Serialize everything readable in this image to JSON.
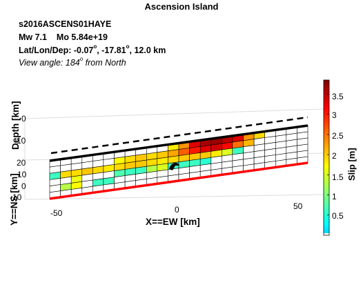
{
  "chart_data": {
    "type": "heatmap",
    "title": "Ascension Island",
    "event_id": "s2016ASCENS01HAYE",
    "mw_label": "Mw 7.1",
    "mo_label": "Mo 5.84e+19",
    "location_prefix": "Lat/Lon/Dep: -0.07",
    "location_mid": ", -17.81",
    "location_suffix": ", 12.0 km",
    "view_prefix": "View angle: 184",
    "view_suffix": " from North",
    "degree_symbol": "o",
    "xlabel": "X==EW [km]",
    "ylabel": "Y==NS [km]",
    "zlabel": "Depth [km]",
    "x_ticks": [
      "-50",
      "0",
      "50"
    ],
    "y_ticks": [
      "-10",
      "0",
      "10"
    ],
    "z_ticks": [
      "0",
      "10",
      "20"
    ],
    "colorbar_label": "Slip [m]",
    "colorbar_ticks": [
      "0.5",
      "1",
      "1.5",
      "2",
      "2.5",
      "3",
      "3.5"
    ],
    "colorbar_range": [
      0,
      3.85
    ],
    "colors": {
      "fault_top_line": "#000000",
      "fault_bottom_line": "#ff0000",
      "surface_trace": "#000000",
      "hypocenter": "#000000"
    },
    "slip_grid": [
      [
        0,
        0,
        0,
        0,
        0,
        0,
        0,
        0,
        0,
        0,
        0,
        1.8,
        2.3,
        3.3,
        3.6,
        3.7,
        3.5,
        3.3,
        2.3,
        1.9,
        0,
        0,
        0,
        0
      ],
      [
        0,
        0,
        0,
        0,
        0,
        0,
        1.7,
        1.9,
        2.0,
        1.9,
        2.0,
        2.2,
        2.6,
        3.0,
        3.3,
        3.4,
        3.1,
        2.5,
        2.1,
        0,
        0,
        0,
        0,
        0
      ],
      [
        0.6,
        1.9,
        1.9,
        2.0,
        1.9,
        1.8,
        1.9,
        2.0,
        2.0,
        1.9,
        1.8,
        1.9,
        2.0,
        2.0,
        2.0,
        1.8,
        1.5,
        0.6,
        0,
        0,
        0,
        0,
        0,
        0
      ],
      [
        0,
        0,
        1.6,
        0,
        0,
        0,
        0.7,
        0.6,
        0.6,
        1.3,
        1.5,
        0.6,
        0.6,
        0.6,
        0.5,
        0,
        0,
        0,
        0,
        0,
        0,
        0,
        0,
        0
      ],
      [
        0,
        1.3,
        1.7,
        0,
        0.6,
        0.6,
        0,
        0,
        0,
        0,
        0,
        0,
        0,
        0,
        0,
        0,
        0,
        0,
        0,
        0,
        0,
        0,
        0,
        0
      ],
      [
        0,
        0,
        0,
        0,
        0,
        0,
        0,
        0,
        0,
        0,
        0,
        0,
        0,
        0,
        0,
        0,
        0,
        0,
        0,
        0,
        0,
        0,
        0,
        0
      ]
    ]
  }
}
